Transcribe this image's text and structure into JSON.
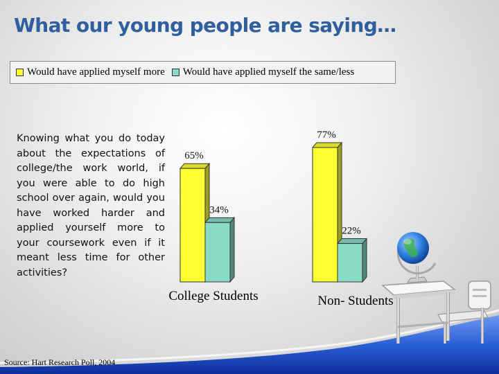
{
  "slide": {
    "title": "What our young people are saying…",
    "question": "Knowing what you do today about the expectations of college/the work world, if you were able to do high school over again, would you have worked harder and applied yourself more to your coursework even if it meant less time for other activities?",
    "source": "Source: Hart Research Poll, 2004"
  },
  "chart_data": {
    "type": "bar",
    "categories": [
      "College Students",
      "Non- Students"
    ],
    "series": [
      {
        "name": "Would have applied myself more",
        "values": [
          65,
          77
        ],
        "labels": [
          "65%",
          "77%"
        ],
        "color": "#ffff33"
      },
      {
        "name": "Would have applied myself the same/less",
        "values": [
          34,
          22
        ],
        "labels": [
          "34%",
          "22%"
        ],
        "color": "#88dcc6"
      }
    ],
    "title": "",
    "xlabel": "",
    "ylabel": "",
    "ylim": [
      0,
      100
    ],
    "grid": false,
    "legend_position": "top"
  },
  "colors": {
    "title": "#2f5f9e",
    "bar_outline": "#333333",
    "floor_blue": "#1e4fbf"
  },
  "illustration": {
    "icon": "school-desk-with-globe"
  }
}
